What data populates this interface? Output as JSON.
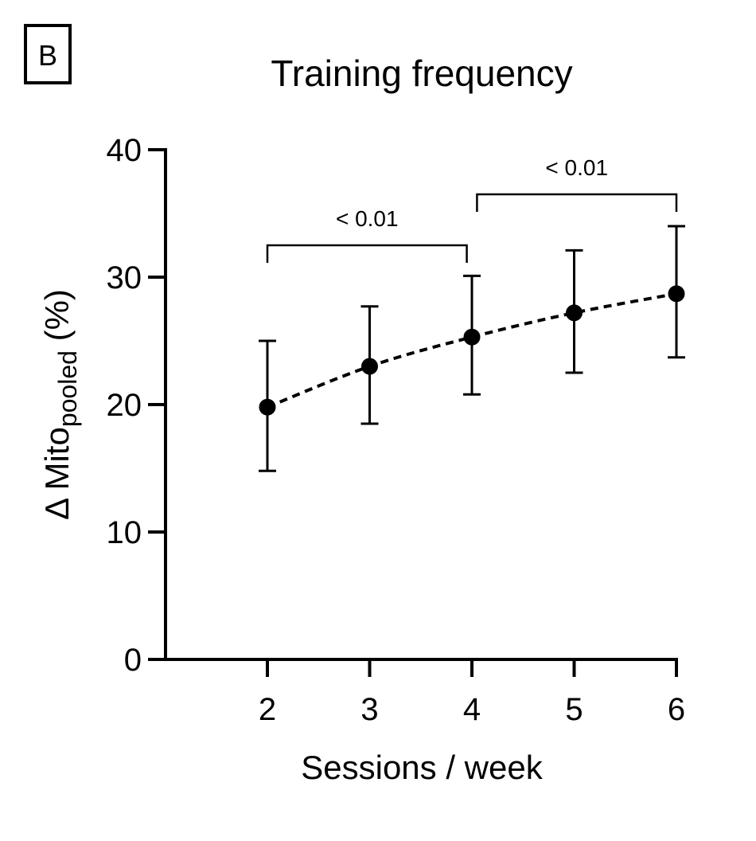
{
  "panel": {
    "letter": "B"
  },
  "chart_data": {
    "type": "scatter",
    "title": "Training frequency",
    "xlabel": "Sessions / week",
    "ylabel": {
      "main": "Δ Mito",
      "subscript": "pooled",
      "suffix": " (%)"
    },
    "x": [
      2,
      3,
      4,
      5,
      6
    ],
    "series": [
      {
        "values": [
          19.8,
          23.0,
          25.3,
          27.2,
          28.7
        ],
        "err_low": [
          14.8,
          18.5,
          20.8,
          22.5,
          23.7
        ],
        "err_high": [
          25.0,
          27.7,
          30.1,
          32.1,
          34.0
        ],
        "line_style": "dashed",
        "color": "#000000"
      }
    ],
    "xticks": [
      2,
      3,
      4,
      5,
      6
    ],
    "yticks": [
      0,
      10,
      20,
      30,
      40
    ],
    "xlim": [
      1.0,
      6.0
    ],
    "ylim": [
      0,
      40
    ],
    "grid": false,
    "annotations": [
      {
        "text": "< 0.01",
        "x1": 2,
        "x2": 3.95,
        "y": 32.5
      },
      {
        "text": "< 0.01",
        "x1": 4.05,
        "x2": 6,
        "y": 36.5
      }
    ]
  }
}
